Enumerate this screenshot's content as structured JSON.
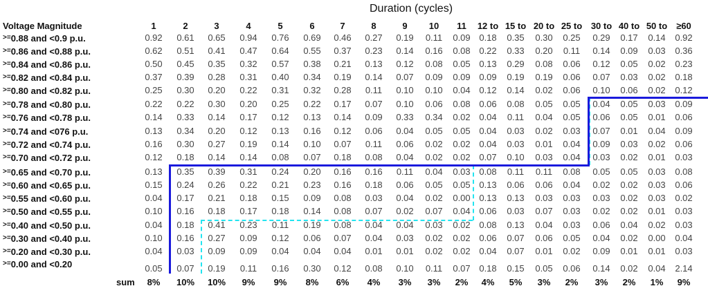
{
  "title": "Duration (cycles)",
  "row_header": "Voltage Magnitude",
  "columns": [
    "1",
    "2",
    "3",
    "4",
    "5",
    "6",
    "7",
    "8",
    "9",
    "10",
    "11",
    "12 to",
    "15 to",
    "20 to",
    "25 to",
    "30 to",
    "40 to",
    "50 to",
    "≥60"
  ],
  "rows": [
    {
      "prefix": ">=",
      "label": "0.88 and <0.9 p.u.",
      "values": [
        "0.92",
        "0.61",
        "0.65",
        "0.94",
        "0.76",
        "0.69",
        "0.46",
        "0.27",
        "0.19",
        "0.11",
        "0.09",
        "0.18",
        "0.35",
        "0.30",
        "0.25",
        "0.29",
        "0.17",
        "0.14",
        "0.92"
      ]
    },
    {
      "prefix": ">=",
      "label": "0.86 and <0.88 p.u.",
      "values": [
        "0.62",
        "0.51",
        "0.41",
        "0.47",
        "0.64",
        "0.55",
        "0.37",
        "0.23",
        "0.14",
        "0.16",
        "0.08",
        "0.22",
        "0.33",
        "0.20",
        "0.11",
        "0.14",
        "0.09",
        "0.03",
        "0.36"
      ]
    },
    {
      "prefix": ">=",
      "label": "0.84 and <0.86 p.u.",
      "values": [
        "0.50",
        "0.45",
        "0.35",
        "0.32",
        "0.57",
        "0.38",
        "0.21",
        "0.13",
        "0.12",
        "0.08",
        "0.05",
        "0.13",
        "0.29",
        "0.08",
        "0.06",
        "0.12",
        "0.05",
        "0.02",
        "0.23"
      ]
    },
    {
      "prefix": ">=",
      "label": "0.82 and <0.84 p.u.",
      "values": [
        "0.37",
        "0.39",
        "0.28",
        "0.31",
        "0.40",
        "0.34",
        "0.19",
        "0.14",
        "0.07",
        "0.09",
        "0.09",
        "0.09",
        "0.19",
        "0.19",
        "0.06",
        "0.07",
        "0.03",
        "0.02",
        "0.18"
      ]
    },
    {
      "prefix": ">=",
      "label": "0.80 and <0.82 p.u.",
      "values": [
        "0.25",
        "0.30",
        "0.20",
        "0.22",
        "0.31",
        "0.32",
        "0.28",
        "0.11",
        "0.10",
        "0.10",
        "0.04",
        "0.12",
        "0.14",
        "0.02",
        "0.06",
        "0.10",
        "0.06",
        "0.02",
        "0.12"
      ]
    },
    {
      "prefix": ">=",
      "label": "0.78 and <0.80 p.u.",
      "values": [
        "0.22",
        "0.22",
        "0.30",
        "0.20",
        "0.25",
        "0.22",
        "0.17",
        "0.07",
        "0.10",
        "0.06",
        "0.08",
        "0.06",
        "0.08",
        "0.05",
        "0.05",
        "0.04",
        "0.05",
        "0.03",
        "0.09"
      ]
    },
    {
      "prefix": ">=",
      "label": "0.76 and <0.78 p.u.",
      "values": [
        "0.14",
        "0.33",
        "0.14",
        "0.17",
        "0.12",
        "0.13",
        "0.14",
        "0.09",
        "0.33",
        "0.34",
        "0.02",
        "0.04",
        "0.11",
        "0.04",
        "0.05",
        "0.06",
        "0.05",
        "0.01",
        "0.06"
      ]
    },
    {
      "prefix": ">=",
      "label": "0.74 and <076 p.u.",
      "values": [
        "0.13",
        "0.34",
        "0.20",
        "0.12",
        "0.13",
        "0.16",
        "0.12",
        "0.06",
        "0.04",
        "0.05",
        "0.05",
        "0.04",
        "0.03",
        "0.02",
        "0.03",
        "0.07",
        "0.01",
        "0.04",
        "0.09"
      ]
    },
    {
      "prefix": ">=",
      "label": "0.72 and <0.74 p.u.",
      "values": [
        "0.16",
        "0.30",
        "0.27",
        "0.19",
        "0.14",
        "0.10",
        "0.07",
        "0.11",
        "0.06",
        "0.02",
        "0.02",
        "0.04",
        "0.03",
        "0.01",
        "0.04",
        "0.09",
        "0.03",
        "0.02",
        "0.06"
      ]
    },
    {
      "prefix": ">=",
      "label": "0.70 and <0.72 p.u.",
      "values": [
        "0.12",
        "0.18",
        "0.14",
        "0.14",
        "0.08",
        "0.07",
        "0.18",
        "0.08",
        "0.04",
        "0.02",
        "0.02",
        "0.07",
        "0.10",
        "0.03",
        "0.04",
        "0.03",
        "0.02",
        "0.01",
        "0.03"
      ]
    },
    {
      "prefix": ">=",
      "label": "0.65 and <0.70 p.u.",
      "values": [
        "0.13",
        "0.35",
        "0.39",
        "0.31",
        "0.24",
        "0.20",
        "0.16",
        "0.16",
        "0.11",
        "0.04",
        "0.03",
        "0.08",
        "0.11",
        "0.11",
        "0.08",
        "0.05",
        "0.05",
        "0.03",
        "0.08"
      ]
    },
    {
      "prefix": ">=",
      "label": "0.60 and <0.65 p.u.",
      "values": [
        "0.15",
        "0.24",
        "0.26",
        "0.22",
        "0.21",
        "0.23",
        "0.16",
        "0.18",
        "0.06",
        "0.05",
        "0.05",
        "0.13",
        "0.06",
        "0.06",
        "0.04",
        "0.02",
        "0.02",
        "0.03",
        "0.06"
      ]
    },
    {
      "prefix": ">=",
      "label": "0.55 and <0.60 p.u.",
      "values": [
        "0.04",
        "0.17",
        "0.21",
        "0.18",
        "0.15",
        "0.09",
        "0.08",
        "0.03",
        "0.04",
        "0.02",
        "0.00",
        "0.13",
        "0.13",
        "0.03",
        "0.03",
        "0.03",
        "0.02",
        "0.03",
        "0.02"
      ]
    },
    {
      "prefix": ">=",
      "label": "0.50 and <0.55 p.u.",
      "values": [
        "0.10",
        "0.16",
        "0.18",
        "0.17",
        "0.18",
        "0.14",
        "0.08",
        "0.07",
        "0.02",
        "0.07",
        "0.04",
        "0.06",
        "0.03",
        "0.07",
        "0.03",
        "0.02",
        "0.02",
        "0.01",
        "0.03"
      ]
    },
    {
      "prefix": ">=",
      "label": "0.40 and <0.50 p.u.",
      "values": [
        "0.04",
        "0.18",
        "0.41",
        "0.23",
        "0.11",
        "0.19",
        "0.08",
        "0.04",
        "0.04",
        "0.03",
        "0.02",
        "0.08",
        "0.13",
        "0.04",
        "0.03",
        "0.06",
        "0.04",
        "0.02",
        "0.03"
      ]
    },
    {
      "prefix": ">=",
      "label": "0.30 and <0.40 p.u.",
      "values": [
        "0.10",
        "0.16",
        "0.27",
        "0.09",
        "0.12",
        "0.06",
        "0.07",
        "0.04",
        "0.03",
        "0.02",
        "0.02",
        "0.06",
        "0.07",
        "0.06",
        "0.05",
        "0.04",
        "0.02",
        "0.00",
        "0.04"
      ]
    },
    {
      "prefix": ">=",
      "label": "0.20 and <0.30 p.u.",
      "values": [
        "0.04",
        "0.03",
        "0.09",
        "0.09",
        "0.04",
        "0.04",
        "0.04",
        "0.01",
        "0.01",
        "0.02",
        "0.02",
        "0.04",
        "0.07",
        "0.01",
        "0.02",
        "0.09",
        "0.01",
        "0.01",
        "0.03"
      ]
    },
    {
      "prefix": ">=",
      "label": "0.00 and <0.20",
      "values": [
        "0.05",
        "0.07",
        "0.19",
        "0.11",
        "0.16",
        "0.30",
        "0.12",
        "0.08",
        "0.10",
        "0.11",
        "0.07",
        "0.18",
        "0.15",
        "0.05",
        "0.06",
        "0.14",
        "0.02",
        "0.04",
        "2.14"
      ]
    }
  ],
  "sum_label": "sum",
  "sums": [
    "8%",
    "10%",
    "10%",
    "9%",
    "9%",
    "8%",
    "6%",
    "4%",
    "3%",
    "3%",
    "2%",
    "4%",
    "5%",
    "3%",
    "2%",
    "3%",
    "2%",
    "1%",
    "9%"
  ],
  "colors": {
    "solid_boundary": "#1a1adc",
    "dashed_boundary": "#22e4f0",
    "value_text": "#444444",
    "label_text": "#111111"
  }
}
